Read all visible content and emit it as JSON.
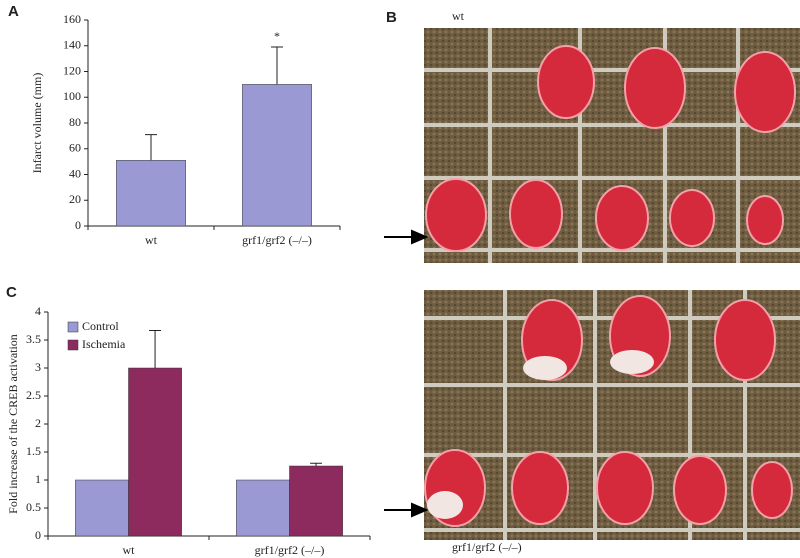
{
  "panel_labels": [
    "A",
    "B",
    "C"
  ],
  "photo_labels": [
    "wt",
    "grf1/grf2 (–/–)"
  ],
  "chart_data": [
    {
      "type": "bar",
      "ylabel": "Infarct volume (mm)",
      "categories": [
        "wt",
        "grf1/grf2 (–/–)"
      ],
      "values": [
        51,
        110
      ],
      "errors": [
        20,
        29
      ],
      "color": "#9b99d3",
      "annotation": "*",
      "ylim": [
        0,
        160
      ],
      "yticks": [
        0,
        20,
        40,
        60,
        80,
        100,
        120,
        140,
        160
      ]
    },
    {
      "type": "grouped-bar",
      "ylabel": "Fold increase of the CREB activation",
      "categories": [
        "wt",
        "grf1/grf2 (–/–)"
      ],
      "series": [
        {
          "name": "Control",
          "color": "#9b99d3",
          "values": [
            1,
            1
          ]
        },
        {
          "name": "Ischemia",
          "color": "#8e2b5e",
          "values": [
            3,
            1.25
          ],
          "errors": [
            0.67,
            0.05
          ]
        }
      ],
      "legend": "upper left",
      "ylim": [
        0,
        4
      ],
      "yticks": [
        0,
        0.5,
        1,
        1.5,
        2,
        2.5,
        3,
        3.5,
        4
      ]
    }
  ]
}
